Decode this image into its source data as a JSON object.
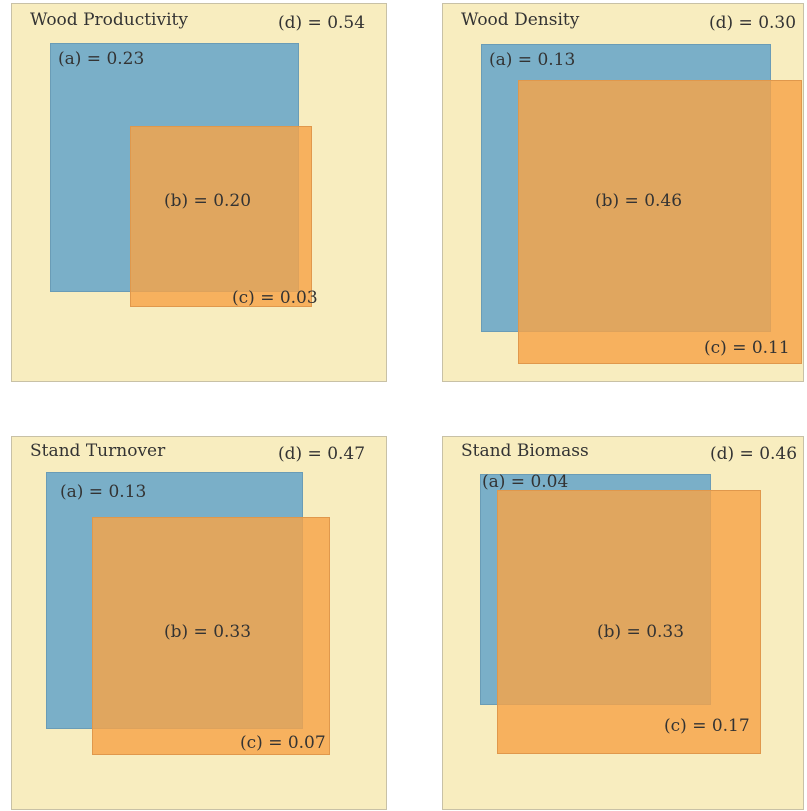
{
  "panels": [
    {
      "title": "Wood Productivity",
      "a": "(a) = 0.23",
      "b": "(b) = 0.20",
      "c": "(c) = 0.03",
      "d": "(d) = 0.54"
    },
    {
      "title": "Wood Density",
      "a": "(a) = 0.13",
      "b": "(b) = 0.46",
      "c": "(c) = 0.11",
      "d": "(d) = 0.30"
    },
    {
      "title": "Stand Turnover",
      "a": "(a) = 0.13",
      "b": "(b) = 0.33",
      "c": "(c) = 0.07",
      "d": "(d) = 0.47"
    },
    {
      "title": "Stand Biomass",
      "a": "(a) = 0.04",
      "b": "(b) = 0.33",
      "c": "(c) = 0.17",
      "d": "(d) = 0.46"
    }
  ],
  "colors": {
    "background": "#f8edbf",
    "set_a": "#7aafc8",
    "set_c": "#f6a348",
    "overlap_b": "#b9a172"
  }
}
